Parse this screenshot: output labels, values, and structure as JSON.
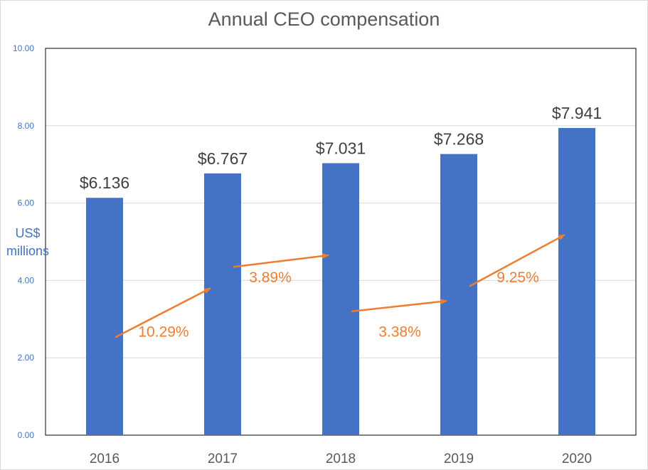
{
  "chart_data": {
    "type": "bar",
    "title": "Annual CEO compensation",
    "ylabel": "US$ millions",
    "xlabel": "",
    "categories": [
      "2016",
      "2017",
      "2018",
      "2019",
      "2020"
    ],
    "values": [
      6.136,
      6.767,
      7.031,
      7.268,
      7.941
    ],
    "data_labels": [
      "$6.136",
      "$6.767",
      "$7.031",
      "$7.268",
      "$7.941"
    ],
    "ylim": [
      0,
      10
    ],
    "yticks": [
      "0.00",
      "2.00",
      "4.00",
      "6.00",
      "8.00",
      "10.00"
    ],
    "grid": true,
    "legend": "none",
    "bar_color": "#4472c4",
    "annotations": [
      {
        "text": "10.29%",
        "from": "2016",
        "to": "2017"
      },
      {
        "text": "3.89%",
        "from": "2017",
        "to": "2018"
      },
      {
        "text": "3.38%",
        "from": "2018",
        "to": "2019"
      },
      {
        "text": "9.25%",
        "from": "2019",
        "to": "2020"
      }
    ],
    "annotation_color": "#ed7d31"
  }
}
